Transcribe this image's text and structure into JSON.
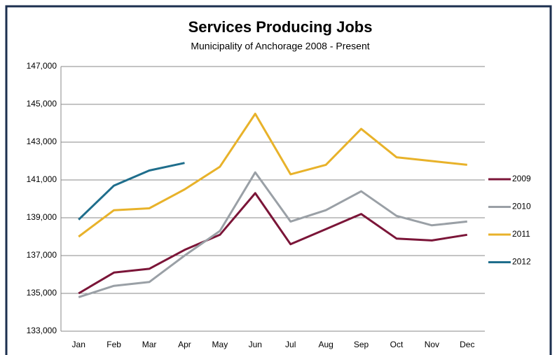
{
  "chart_data": {
    "type": "line",
    "title": "Services Producing Jobs",
    "subtitle": "Municipality of Anchorage 2008 - Present",
    "categories": [
      "Jan",
      "Feb",
      "Mar",
      "Apr",
      "May",
      "Jun",
      "Jul",
      "Aug",
      "Sep",
      "Oct",
      "Nov",
      "Dec"
    ],
    "series": [
      {
        "name": "2009",
        "color": "#7b1538",
        "values": [
          135000,
          136100,
          136300,
          137300,
          138100,
          140300,
          137600,
          138400,
          139200,
          137900,
          137800,
          138100
        ]
      },
      {
        "name": "2010",
        "color": "#9aa0a6",
        "values": [
          134800,
          135400,
          135600,
          137000,
          138300,
          141400,
          138800,
          139400,
          140400,
          139100,
          138600,
          138800
        ]
      },
      {
        "name": "2011",
        "color": "#e8b22a",
        "values": [
          138000,
          139400,
          139500,
          140500,
          141700,
          144500,
          141300,
          141800,
          143700,
          142200,
          142000,
          141800
        ]
      },
      {
        "name": "2012",
        "color": "#1f6e8c",
        "values": [
          138900,
          140700,
          141500,
          141900,
          null,
          null,
          null,
          null,
          null,
          null,
          null,
          null
        ]
      }
    ],
    "ylim": [
      133000,
      147000
    ],
    "yticks": [
      {
        "value": 133000,
        "label": "133,000"
      },
      {
        "value": 135000,
        "label": "135,000"
      },
      {
        "value": 137000,
        "label": "137,000"
      },
      {
        "value": 139000,
        "label": "139,000"
      },
      {
        "value": 141000,
        "label": "141,000"
      },
      {
        "value": 143000,
        "label": "143,000"
      },
      {
        "value": 145000,
        "label": "145,000"
      },
      {
        "value": 147000,
        "label": "147,000"
      }
    ],
    "grid": true,
    "legend": "right"
  }
}
